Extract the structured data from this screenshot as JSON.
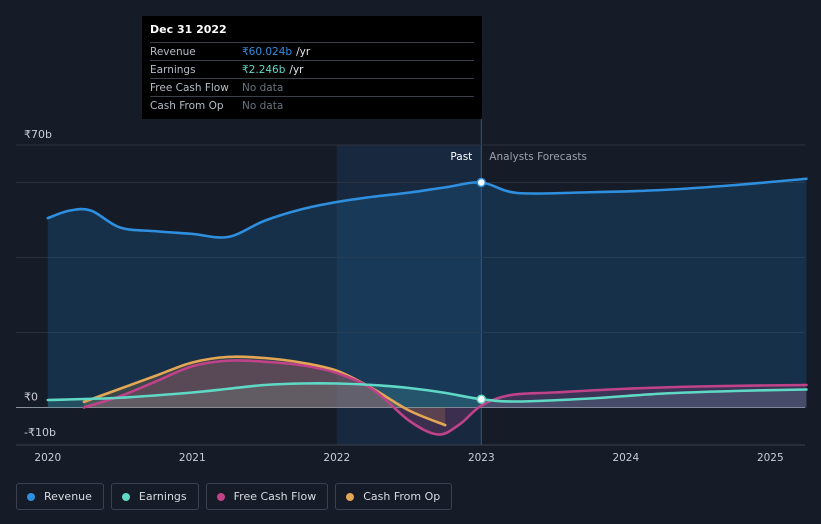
{
  "tooltip": {
    "date": "Dec 31 2022",
    "rows": [
      {
        "label": "Revenue",
        "value": "₹60.024b",
        "unit": "/yr",
        "color": "#2f8fdf"
      },
      {
        "label": "Earnings",
        "value": "₹2.246b",
        "unit": "/yr",
        "color": "#5fd9c6"
      },
      {
        "label": "Free Cash Flow",
        "value": "No data",
        "unit": "",
        "color": ""
      },
      {
        "label": "Cash From Op",
        "value": "No data",
        "unit": "",
        "color": ""
      }
    ]
  },
  "labels": {
    "past": "Past",
    "forecast": "Analysts Forecasts"
  },
  "legend": [
    {
      "label": "Revenue",
      "color": "#2f8fdf"
    },
    {
      "label": "Earnings",
      "color": "#5fd9c6"
    },
    {
      "label": "Free Cash Flow",
      "color": "#c0438a"
    },
    {
      "label": "Cash From Op",
      "color": "#e3a655"
    }
  ],
  "chart_data": {
    "type": "line",
    "y_ticks": [
      "₹70b",
      "₹0",
      "-₹10b"
    ],
    "x_ticks": [
      "2020",
      "2021",
      "2022",
      "2023",
      "2024",
      "2025"
    ],
    "ylim": [
      -10,
      70
    ],
    "xlim": [
      2019.78,
      2025.24
    ],
    "past_end": 2023.0,
    "highlight_start": 2022.0,
    "series": [
      {
        "name": "Revenue",
        "color": "#2f8fdf",
        "fill": true,
        "x": [
          2020.0,
          2020.15,
          2020.3,
          2020.5,
          2020.75,
          2021.0,
          2021.25,
          2021.5,
          2021.75,
          2022.0,
          2022.25,
          2022.5,
          2022.75,
          2023.0,
          2023.25,
          2023.75,
          2024.25,
          2024.75,
          2025.25
        ],
        "y": [
          50.5,
          52.5,
          52.5,
          48.0,
          47.0,
          46.3,
          45.5,
          49.8,
          52.8,
          54.8,
          56.2,
          57.3,
          58.7,
          60.0,
          57.2,
          57.4,
          58.0,
          59.3,
          61.0
        ]
      },
      {
        "name": "Earnings",
        "color": "#5fd9c6",
        "fill": true,
        "x": [
          2020.0,
          2020.5,
          2021.0,
          2021.25,
          2021.5,
          2021.75,
          2022.0,
          2022.25,
          2022.5,
          2022.75,
          2023.0,
          2023.25,
          2023.75,
          2024.25,
          2024.75,
          2025.25
        ],
        "y": [
          2.0,
          2.6,
          4.0,
          5.0,
          6.0,
          6.4,
          6.4,
          6.0,
          5.2,
          3.9,
          2.2,
          1.6,
          2.4,
          3.7,
          4.4,
          4.8
        ]
      },
      {
        "name": "Free Cash Flow",
        "color": "#c0438a",
        "fill": true,
        "x": [
          2020.25,
          2020.5,
          2020.75,
          2021.0,
          2021.25,
          2021.5,
          2021.75,
          2022.0,
          2022.25,
          2022.5,
          2022.7,
          2022.85,
          2023.0,
          2023.2,
          2023.5,
          2024.0,
          2024.5,
          2025.0,
          2025.25
        ],
        "y": [
          0.0,
          3.0,
          7.0,
          11.0,
          12.5,
          12.2,
          11.3,
          9.2,
          4.8,
          -3.5,
          -7.2,
          -4.5,
          0.5,
          3.3,
          4.0,
          5.0,
          5.6,
          5.9,
          6.0
        ]
      },
      {
        "name": "Cash From Op",
        "color": "#e3a655",
        "fill": true,
        "x": [
          2020.25,
          2020.5,
          2020.75,
          2021.0,
          2021.25,
          2021.5,
          2021.75,
          2022.0,
          2022.25,
          2022.5,
          2022.75
        ],
        "y": [
          1.5,
          5.0,
          8.5,
          12.0,
          13.5,
          13.2,
          12.0,
          9.8,
          5.0,
          -0.8,
          -4.7
        ]
      }
    ]
  }
}
